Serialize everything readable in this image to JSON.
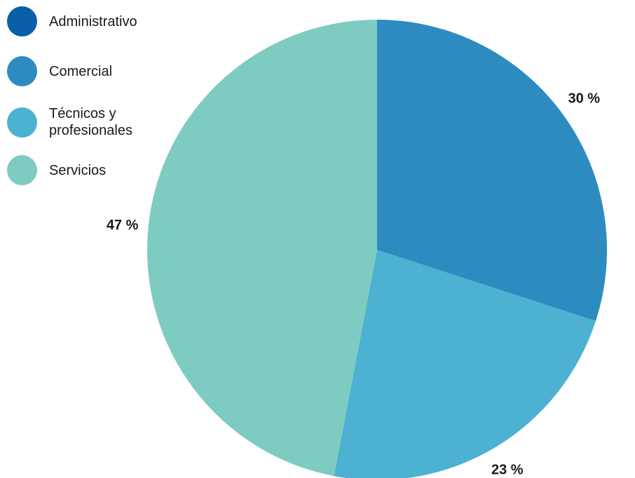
{
  "chart_data": {
    "type": "pie",
    "title": "",
    "legend_position": "top-left",
    "slices": [
      {
        "name": "Administrativo",
        "value": 0,
        "label": "",
        "color": "#0a5ea8"
      },
      {
        "name": "Comercial",
        "value": 30,
        "label": "30 %",
        "color": "#2e8bbf"
      },
      {
        "name": "Técnicos y\nprofesionales",
        "value": 23,
        "label": "23 %",
        "color": "#4db1d1"
      },
      {
        "name": "Servicios",
        "value": 47,
        "label": "47 %",
        "color": "#7ecbc2"
      }
    ]
  }
}
